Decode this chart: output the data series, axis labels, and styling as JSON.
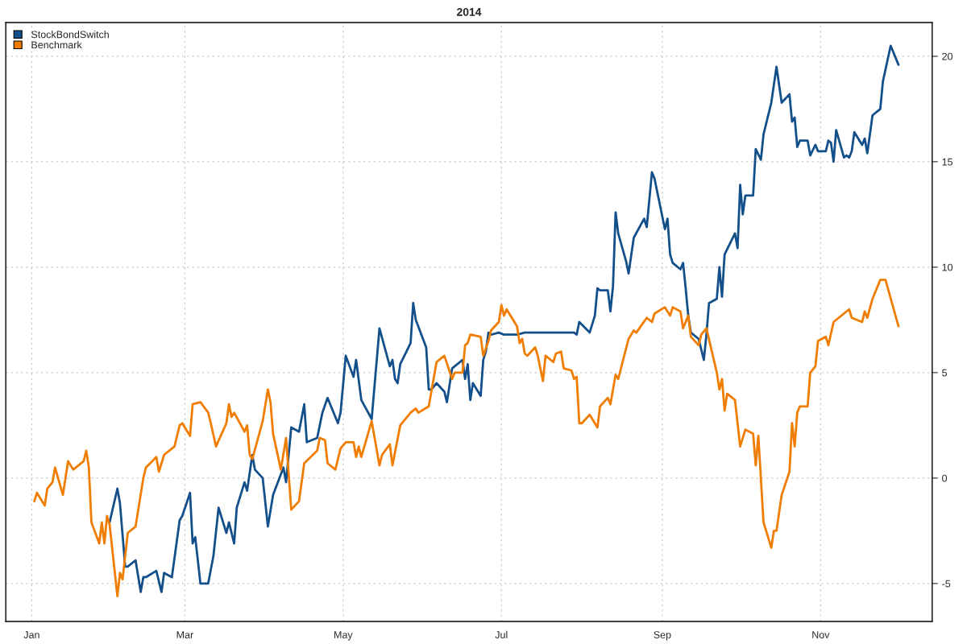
{
  "chart_data": {
    "type": "line",
    "title": "2014",
    "xlim": [
      "2013-12-22",
      "2014-12-14"
    ],
    "ylim": [
      -6.8,
      21.6
    ],
    "xticks": [
      {
        "value": "2014-01-01",
        "label": "Jan"
      },
      {
        "value": "2014-03-01",
        "label": "Mar"
      },
      {
        "value": "2014-05-01",
        "label": "May"
      },
      {
        "value": "2014-07-01",
        "label": "Jul"
      },
      {
        "value": "2014-09-01",
        "label": "Sep"
      },
      {
        "value": "2014-11-01",
        "label": "Nov"
      }
    ],
    "yticks": [
      -5,
      0,
      5,
      10,
      15,
      20
    ],
    "grid": true,
    "legend": "top left",
    "marker": "none",
    "line_style": "solid",
    "series": [
      {
        "name": "StockBondSwitch",
        "color": "#134f8a",
        "x": [
          "2014-01-31",
          "2014-02-03",
          "2014-02-04",
          "2014-02-06",
          "2014-02-07",
          "2014-02-10",
          "2014-02-12",
          "2014-02-13",
          "2014-02-14",
          "2014-02-18",
          "2014-02-20",
          "2014-02-21",
          "2014-02-24",
          "2014-02-27",
          "2014-02-28",
          "2014-03-03",
          "2014-03-04",
          "2014-03-05",
          "2014-03-07",
          "2014-03-10",
          "2014-03-12",
          "2014-03-14",
          "2014-03-17",
          "2014-03-18",
          "2014-03-20",
          "2014-03-21",
          "2014-03-24",
          "2014-03-25",
          "2014-03-27",
          "2014-03-28",
          "2014-03-31",
          "2014-04-02",
          "2014-04-04",
          "2014-04-08",
          "2014-04-09",
          "2014-04-11",
          "2014-04-14",
          "2014-04-16",
          "2014-04-17",
          "2014-04-21",
          "2014-04-23",
          "2014-04-25",
          "2014-04-29",
          "2014-04-30",
          "2014-05-02",
          "2014-05-05",
          "2014-05-06",
          "2014-05-08",
          "2014-05-12",
          "2014-05-15",
          "2014-05-19",
          "2014-05-20",
          "2014-05-21",
          "2014-05-22",
          "2014-05-23",
          "2014-05-27",
          "2014-05-28",
          "2014-05-29",
          "2014-06-02",
          "2014-06-03",
          "2014-06-04",
          "2014-06-06",
          "2014-06-09",
          "2014-06-10",
          "2014-06-12",
          "2014-06-16",
          "2014-06-17",
          "2014-06-18",
          "2014-06-19",
          "2014-06-20",
          "2014-06-23",
          "2014-06-24",
          "2014-06-25",
          "2014-06-26",
          "2014-06-27",
          "2014-06-30",
          "2014-07-02",
          "2014-07-07",
          "2014-07-10",
          "2014-07-17",
          "2014-07-25",
          "2014-07-29",
          "2014-07-30",
          "2014-07-31",
          "2014-08-04",
          "2014-08-06",
          "2014-08-07",
          "2014-08-08",
          "2014-08-11",
          "2014-08-12",
          "2014-08-13",
          "2014-08-14",
          "2014-08-15",
          "2014-08-18",
          "2014-08-19",
          "2014-08-21",
          "2014-08-25",
          "2014-08-26",
          "2014-08-28",
          "2014-08-29",
          "2014-09-02",
          "2014-09-03",
          "2014-09-04",
          "2014-09-05",
          "2014-09-08",
          "2014-09-09",
          "2014-09-10",
          "2014-09-11",
          "2014-09-12",
          "2014-09-15",
          "2014-09-17",
          "2014-09-18",
          "2014-09-19",
          "2014-09-22",
          "2014-09-23",
          "2014-09-24",
          "2014-09-25",
          "2014-09-29",
          "2014-09-30",
          "2014-10-01",
          "2014-10-02",
          "2014-10-03",
          "2014-10-06",
          "2014-10-07",
          "2014-10-09",
          "2014-10-10",
          "2014-10-13",
          "2014-10-15",
          "2014-10-17",
          "2014-10-20",
          "2014-10-21",
          "2014-10-22",
          "2014-10-23",
          "2014-10-24",
          "2014-10-27",
          "2014-10-28",
          "2014-10-30",
          "2014-10-31",
          "2014-11-03",
          "2014-11-04",
          "2014-11-05",
          "2014-11-06",
          "2014-11-07",
          "2014-11-10",
          "2014-11-11",
          "2014-11-12",
          "2014-11-13",
          "2014-11-14",
          "2014-11-17",
          "2014-11-18",
          "2014-11-19",
          "2014-11-21",
          "2014-11-24",
          "2014-11-25",
          "2014-11-28",
          "2014-12-01"
        ],
        "values": [
          -2.1,
          -0.5,
          -1.2,
          -4.2,
          -4.2,
          -3.9,
          -5.4,
          -4.7,
          -4.7,
          -4.4,
          -5.4,
          -4.5,
          -4.7,
          -2.0,
          -1.8,
          -0.7,
          -3.1,
          -2.8,
          -5.0,
          -5.0,
          -3.7,
          -1.4,
          -2.6,
          -2.1,
          -3.1,
          -1.4,
          -0.2,
          -0.6,
          1.1,
          0.4,
          0.0,
          -2.3,
          -0.8,
          0.5,
          -0.2,
          2.4,
          2.2,
          3.5,
          1.7,
          1.9,
          3.1,
          3.8,
          2.6,
          3.1,
          5.8,
          4.8,
          5.6,
          3.7,
          2.8,
          7.1,
          5.3,
          5.6,
          4.7,
          4.5,
          5.4,
          6.4,
          8.3,
          7.5,
          6.2,
          4.2,
          4.2,
          4.5,
          4.1,
          3.6,
          5.2,
          5.6,
          4.7,
          5.4,
          3.7,
          4.5,
          3.9,
          5.6,
          6.0,
          6.9,
          6.8,
          6.9,
          6.8,
          6.8,
          6.9,
          6.9,
          6.9,
          6.9,
          6.8,
          7.4,
          6.9,
          7.7,
          9.0,
          8.9,
          8.9,
          7.9,
          9.1,
          12.6,
          11.6,
          10.3,
          9.7,
          11.4,
          12.3,
          11.9,
          14.5,
          14.2,
          11.8,
          12.3,
          10.6,
          10.2,
          9.9,
          10.2,
          9.0,
          7.7,
          6.9,
          6.6,
          5.6,
          6.8,
          8.3,
          8.5,
          10.0,
          8.6,
          10.6,
          11.6,
          10.9,
          13.9,
          12.5,
          13.4,
          13.4,
          15.6,
          15.1,
          16.3,
          17.8,
          19.5,
          17.8,
          18.2,
          16.9,
          17.1,
          15.7,
          16.0,
          16.0,
          15.3,
          15.8,
          15.5,
          15.5,
          16.0,
          15.9,
          15.0,
          16.5,
          15.2,
          15.3,
          15.2,
          15.5,
          16.4,
          15.8,
          16.1,
          15.4,
          17.2,
          17.5,
          18.8,
          20.5,
          19.6
        ]
      },
      {
        "name": "Benchmark",
        "color": "#f07c00",
        "x": [
          "2014-01-02",
          "2014-01-03",
          "2014-01-06",
          "2014-01-07",
          "2014-01-09",
          "2014-01-10",
          "2014-01-13",
          "2014-01-15",
          "2014-01-17",
          "2014-01-21",
          "2014-01-22",
          "2014-01-23",
          "2014-01-24",
          "2014-01-27",
          "2014-01-28",
          "2014-01-29",
          "2014-01-30",
          "2014-01-31",
          "2014-02-03",
          "2014-02-04",
          "2014-02-05",
          "2014-02-07",
          "2014-02-10",
          "2014-02-13",
          "2014-02-14",
          "2014-02-18",
          "2014-02-19",
          "2014-02-21",
          "2014-02-25",
          "2014-02-27",
          "2014-02-28",
          "2014-03-03",
          "2014-03-04",
          "2014-03-07",
          "2014-03-10",
          "2014-03-11",
          "2014-03-13",
          "2014-03-17",
          "2014-03-18",
          "2014-03-19",
          "2014-03-20",
          "2014-03-24",
          "2014-03-25",
          "2014-03-26",
          "2014-03-27",
          "2014-03-31",
          "2014-04-02",
          "2014-04-03",
          "2014-04-04",
          "2014-04-07",
          "2014-04-09",
          "2014-04-10",
          "2014-04-11",
          "2014-04-14",
          "2014-04-16",
          "2014-04-21",
          "2014-04-22",
          "2014-04-24",
          "2014-04-25",
          "2014-04-28",
          "2014-04-30",
          "2014-05-02",
          "2014-05-05",
          "2014-05-06",
          "2014-05-07",
          "2014-05-08",
          "2014-05-12",
          "2014-05-15",
          "2014-05-16",
          "2014-05-19",
          "2014-05-20",
          "2014-05-23",
          "2014-05-27",
          "2014-05-29",
          "2014-05-30",
          "2014-06-03",
          "2014-06-06",
          "2014-06-09",
          "2014-06-12",
          "2014-06-13",
          "2014-06-16",
          "2014-06-17",
          "2014-06-18",
          "2014-06-19",
          "2014-06-23",
          "2014-06-24",
          "2014-06-26",
          "2014-06-27",
          "2014-06-30",
          "2014-07-01",
          "2014-07-02",
          "2014-07-03",
          "2014-07-07",
          "2014-07-08",
          "2014-07-09",
          "2014-07-10",
          "2014-07-11",
          "2014-07-14",
          "2014-07-15",
          "2014-07-17",
          "2014-07-18",
          "2014-07-21",
          "2014-07-22",
          "2014-07-24",
          "2014-07-25",
          "2014-07-28",
          "2014-07-29",
          "2014-07-30",
          "2014-07-31",
          "2014-08-01",
          "2014-08-04",
          "2014-08-06",
          "2014-08-07",
          "2014-08-08",
          "2014-08-11",
          "2014-08-12",
          "2014-08-14",
          "2014-08-15",
          "2014-08-19",
          "2014-08-21",
          "2014-08-22",
          "2014-08-26",
          "2014-08-28",
          "2014-08-29",
          "2014-09-02",
          "2014-09-04",
          "2014-09-05",
          "2014-09-08",
          "2014-09-09",
          "2014-09-11",
          "2014-09-12",
          "2014-09-15",
          "2014-09-16",
          "2014-09-18",
          "2014-09-22",
          "2014-09-23",
          "2014-09-24",
          "2014-09-25",
          "2014-09-26",
          "2014-09-29",
          "2014-10-01",
          "2014-10-03",
          "2014-10-06",
          "2014-10-07",
          "2014-10-08",
          "2014-10-10",
          "2014-10-13",
          "2014-10-14",
          "2014-10-15",
          "2014-10-17",
          "2014-10-20",
          "2014-10-21",
          "2014-10-22",
          "2014-10-23",
          "2014-10-24",
          "2014-10-27",
          "2014-10-28",
          "2014-10-30",
          "2014-10-31",
          "2014-11-03",
          "2014-11-04",
          "2014-11-06",
          "2014-11-10",
          "2014-11-12",
          "2014-11-13",
          "2014-11-17",
          "2014-11-18",
          "2014-11-19",
          "2014-11-21",
          "2014-11-24",
          "2014-11-26",
          "2014-12-01"
        ],
        "values": [
          -1.1,
          -0.7,
          -1.3,
          -0.5,
          -0.2,
          0.5,
          -0.8,
          0.8,
          0.4,
          0.8,
          1.3,
          0.5,
          -2.1,
          -3.1,
          -2.1,
          -3.1,
          -1.8,
          -2.2,
          -5.6,
          -4.5,
          -4.8,
          -2.6,
          -2.3,
          0.0,
          0.5,
          1.0,
          0.3,
          1.1,
          1.5,
          2.5,
          2.6,
          2.0,
          3.5,
          3.6,
          3.1,
          2.6,
          1.5,
          2.6,
          3.5,
          2.9,
          3.1,
          2.2,
          2.5,
          1.1,
          0.9,
          2.7,
          4.2,
          3.6,
          2.1,
          0.4,
          1.9,
          0.2,
          -1.5,
          -1.1,
          0.7,
          1.3,
          1.9,
          1.8,
          0.7,
          0.4,
          1.4,
          1.7,
          1.7,
          1.0,
          1.5,
          1.0,
          2.7,
          0.6,
          1.1,
          1.6,
          0.6,
          2.5,
          3.1,
          3.3,
          3.1,
          3.4,
          5.5,
          5.8,
          4.7,
          5.0,
          5.0,
          6.3,
          6.4,
          6.8,
          6.7,
          5.8,
          6.5,
          7.0,
          7.4,
          8.2,
          7.7,
          8.0,
          7.2,
          6.4,
          6.6,
          5.9,
          5.8,
          6.2,
          5.8,
          4.6,
          5.8,
          5.5,
          5.9,
          6.0,
          5.2,
          5.1,
          4.7,
          4.8,
          2.6,
          2.6,
          3.0,
          2.6,
          2.4,
          3.4,
          3.8,
          3.5,
          4.9,
          4.7,
          6.6,
          7.0,
          6.9,
          7.6,
          7.4,
          7.8,
          8.1,
          7.7,
          8.1,
          7.9,
          7.1,
          7.7,
          6.7,
          6.3,
          6.8,
          7.1,
          5.0,
          4.2,
          4.7,
          3.2,
          4.0,
          3.7,
          1.5,
          2.3,
          2.1,
          0.6,
          2.0,
          -2.1,
          -3.3,
          -2.5,
          -2.5,
          -0.8,
          0.3,
          2.6,
          1.5,
          3.1,
          3.4,
          3.4,
          5.0,
          5.3,
          6.5,
          6.7,
          6.3,
          7.4,
          7.8,
          8.0,
          7.6,
          7.4,
          7.9,
          7.6,
          8.5,
          9.4,
          9.4,
          7.2
        ]
      }
    ]
  }
}
